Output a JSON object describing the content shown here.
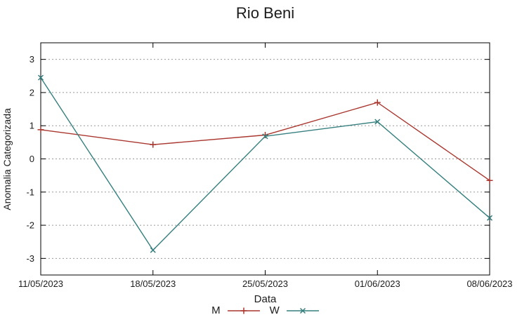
{
  "chart_data": {
    "type": "line",
    "title": "Rio Beni",
    "xlabel": "Data",
    "ylabel": "Anomalia Categorizada",
    "categories": [
      "11/05/2023",
      "18/05/2023",
      "25/05/2023",
      "01/06/2023",
      "08/06/2023"
    ],
    "series": [
      {
        "name": "M",
        "color": "#aa372f",
        "marker": "plus",
        "values": [
          0.88,
          0.43,
          0.72,
          1.7,
          -0.65
        ]
      },
      {
        "name": "W",
        "color": "#357f7f",
        "marker": "cross",
        "values": [
          2.45,
          -2.75,
          0.68,
          1.12,
          -1.78
        ]
      }
    ],
    "ylim": [
      -3.5,
      3.5
    ],
    "yticks": [
      -3,
      -2,
      -1,
      0,
      1,
      2,
      3
    ],
    "grid": "horizontal-dashed",
    "grid_color": "#999999",
    "axis_color": "#000000",
    "legend_position": "bottom-center"
  }
}
